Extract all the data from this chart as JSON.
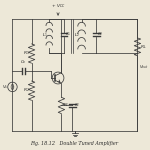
{
  "title": "Fig. 18.12   Double Tuned Amplifier",
  "bg_color": "#ede8d8",
  "line_color": "#3a3a3a",
  "text_color": "#2a2a2a",
  "vcc_label": "+ V_CC",
  "vout_label": "V_out",
  "vs_label": "V_s"
}
